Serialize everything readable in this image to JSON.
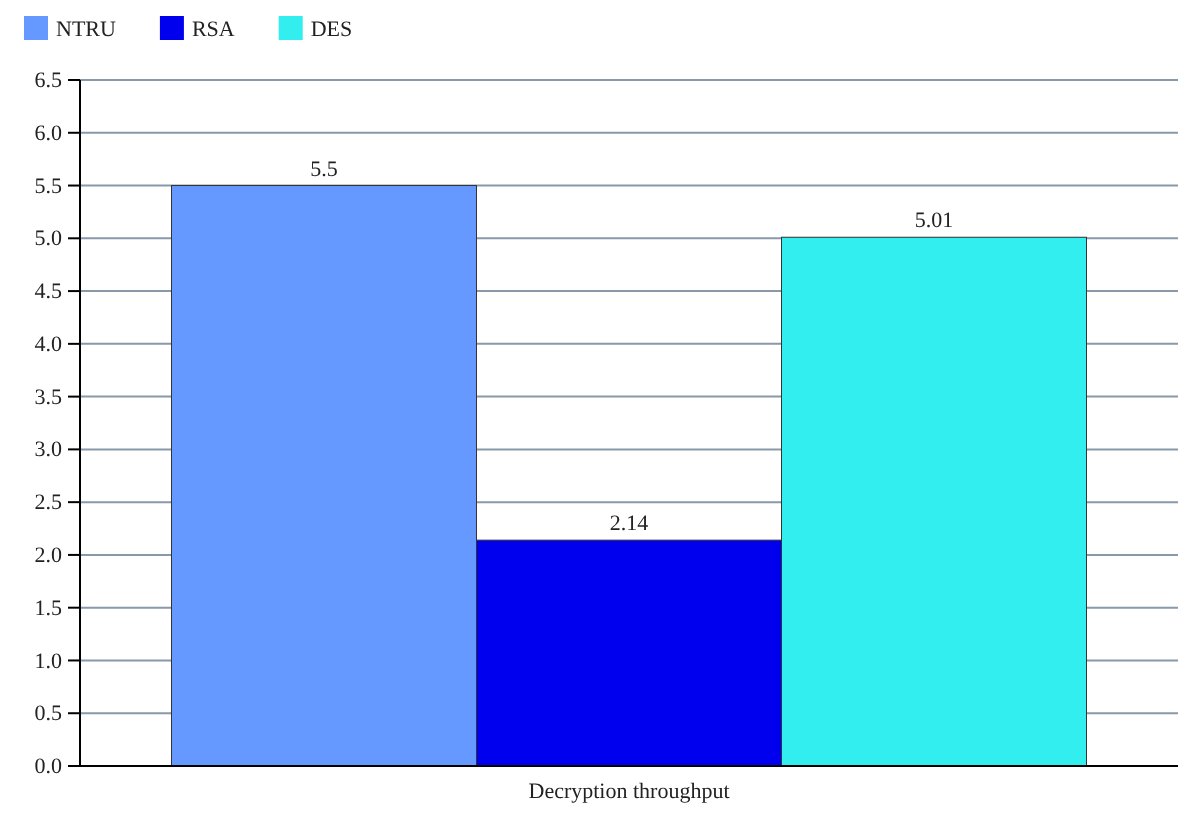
{
  "chart_data": {
    "type": "bar",
    "categories": [
      "Decryption throughput"
    ],
    "series": [
      {
        "name": "NTRU",
        "color": "#6699ff",
        "values": [
          5.5
        ]
      },
      {
        "name": "RSA",
        "color": "#0000ee",
        "values": [
          2.14
        ]
      },
      {
        "name": "DES",
        "color": "#33eeee",
        "values": [
          5.01
        ]
      }
    ],
    "ylim": [
      0,
      6.5
    ],
    "yticks": [
      {
        "value": 0,
        "label": "0.0"
      },
      0.5,
      {
        "value": 1,
        "label": "1.0"
      },
      1.5,
      {
        "value": 2,
        "label": "2.0"
      },
      2.5,
      {
        "value": 3,
        "label": "3.0"
      },
      3.5,
      {
        "value": 4,
        "label": "4.0"
      },
      4.5,
      {
        "value": 5,
        "label": "5.0"
      },
      5.5,
      {
        "value": 6,
        "label": "6.0"
      },
      6.5
    ],
    "grid": "y",
    "legend": "top left",
    "data_labels": true
  }
}
